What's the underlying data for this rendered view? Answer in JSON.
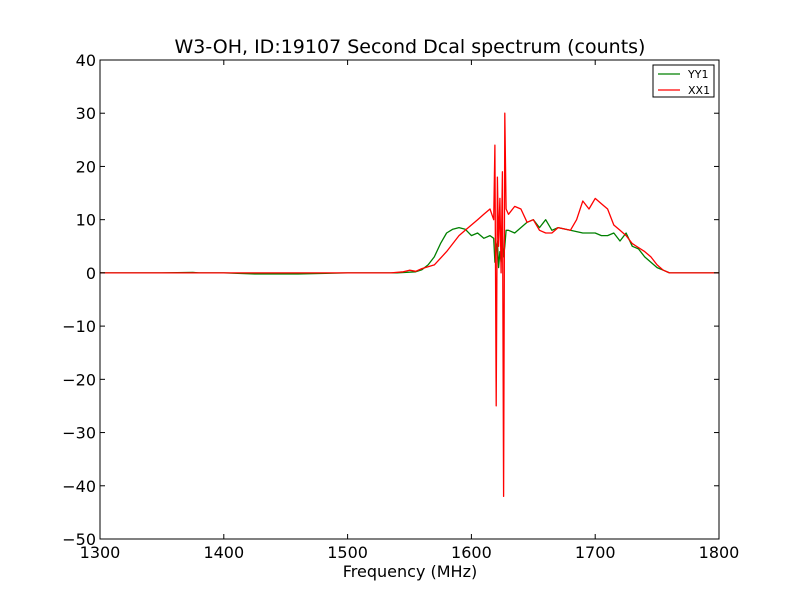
{
  "chart_data": {
    "type": "line",
    "title": "W3-OH, ID:19107 Second Dcal spectrum (counts)",
    "xlabel": "Frequency (MHz)",
    "ylabel": "",
    "xlim": [
      1300,
      1800
    ],
    "ylim": [
      -50,
      40
    ],
    "xticks": [
      1300,
      1400,
      1500,
      1600,
      1700,
      1800
    ],
    "yticks": [
      -50,
      -40,
      -30,
      -20,
      -10,
      0,
      10,
      20,
      30,
      40
    ],
    "xtick_labels": [
      "1300",
      "1400",
      "1500",
      "1600",
      "1700",
      "1800"
    ],
    "ytick_labels": [
      "−50",
      "−40",
      "−30",
      "−20",
      "−10",
      "0",
      "10",
      "20",
      "30",
      "40"
    ],
    "grid": false,
    "legend_position": "top-right",
    "series": [
      {
        "name": "YY1",
        "color": "#008000",
        "x": [
          1300,
          1350,
          1375,
          1380,
          1400,
          1425,
          1460,
          1500,
          1540,
          1555,
          1560,
          1565,
          1570,
          1575,
          1580,
          1585,
          1590,
          1595,
          1600,
          1605,
          1610,
          1615,
          1618,
          1619,
          1620,
          1621,
          1622,
          1623,
          1624,
          1625,
          1626,
          1627,
          1628,
          1630,
          1635,
          1640,
          1645,
          1650,
          1655,
          1660,
          1665,
          1670,
          1680,
          1690,
          1700,
          1705,
          1710,
          1715,
          1720,
          1725,
          1730,
          1735,
          1740,
          1745,
          1750,
          1755,
          1760,
          1765,
          1770,
          1800
        ],
        "y": [
          0,
          0,
          0.1,
          0,
          0,
          -0.2,
          -0.2,
          0,
          0,
          0.2,
          0.6,
          1.5,
          3,
          5.5,
          7.5,
          8.2,
          8.5,
          8.2,
          7,
          7.5,
          6.5,
          7,
          6.5,
          2,
          5,
          6,
          1,
          4,
          2,
          7,
          3,
          5,
          8,
          8,
          7.5,
          8.5,
          9.5,
          10,
          8.5,
          10,
          8,
          8.5,
          8,
          7.5,
          7.5,
          7,
          7,
          7.5,
          6,
          7.5,
          5,
          4.5,
          3,
          2,
          1,
          0.5,
          0,
          0,
          0,
          0
        ]
      },
      {
        "name": "XX1",
        "color": "#ff0000",
        "x": [
          1300,
          1400,
          1500,
          1535,
          1545,
          1550,
          1555,
          1560,
          1570,
          1580,
          1590,
          1595,
          1600,
          1605,
          1610,
          1615,
          1618,
          1619,
          1620,
          1621,
          1622,
          1623,
          1624,
          1625,
          1626,
          1627,
          1628,
          1630,
          1635,
          1640,
          1645,
          1650,
          1655,
          1660,
          1665,
          1670,
          1680,
          1685,
          1690,
          1695,
          1700,
          1705,
          1710,
          1715,
          1720,
          1725,
          1730,
          1740,
          1745,
          1750,
          1755,
          1760,
          1765,
          1770,
          1800
        ],
        "y": [
          0,
          0,
          0,
          0,
          0.2,
          0.5,
          0.3,
          0.8,
          1.5,
          4,
          7,
          8,
          9,
          10,
          11,
          12,
          10,
          24,
          -25,
          18,
          5,
          14,
          0,
          19,
          -42,
          30,
          12,
          11,
          12.5,
          12,
          9.5,
          10,
          8,
          7.5,
          7.5,
          8.5,
          8,
          10,
          13.5,
          12,
          14,
          13,
          12,
          9,
          8,
          7,
          5.5,
          4,
          3,
          1.5,
          0.5,
          0,
          0,
          0,
          0
        ]
      }
    ]
  }
}
